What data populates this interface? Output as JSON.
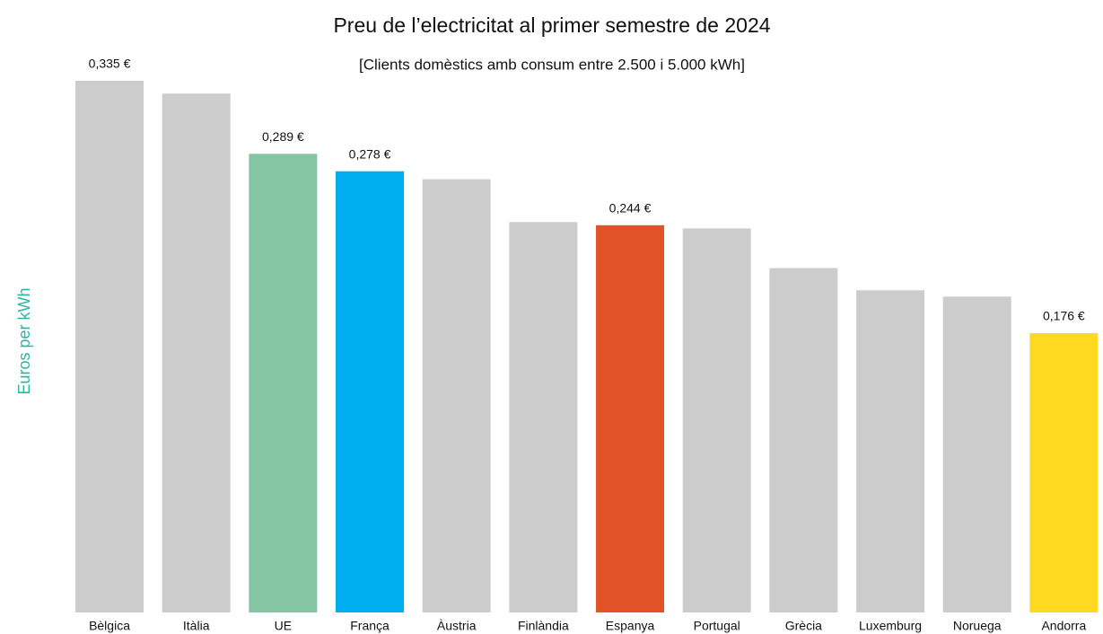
{
  "chart_data": {
    "type": "bar",
    "title": "Preu de l’electricitat al primer semestre de 2024",
    "subtitle": "[Clients domèstics amb consum entre 2.500 i 5.000 kWh]",
    "y_label": "Euros per kWh",
    "categories": [
      "Bèlgica",
      "Itàlia",
      "UE",
      "França",
      "Àustria",
      "Finlàndia",
      "Espanya",
      "Portugal",
      "Grècia",
      "Luxemburg",
      "Noruega",
      "Andorra"
    ],
    "values": [
      0.335,
      0.327,
      0.289,
      0.278,
      0.273,
      0.246,
      0.244,
      0.242,
      0.217,
      0.203,
      0.199,
      0.176
    ],
    "value_labels": [
      "0,335 €",
      null,
      "0,289 €",
      "0,278 €",
      null,
      null,
      "0,244 €",
      null,
      null,
      null,
      null,
      "0,176 €"
    ],
    "colors": [
      "#cccccc",
      "#cccccc",
      "#84c5a3",
      "#00adef",
      "#cccccc",
      "#cccccc",
      "#e15226",
      "#cccccc",
      "#cccccc",
      "#cccccc",
      "#cccccc",
      "#fed91f"
    ],
    "ylim": [
      0,
      0.35
    ]
  }
}
